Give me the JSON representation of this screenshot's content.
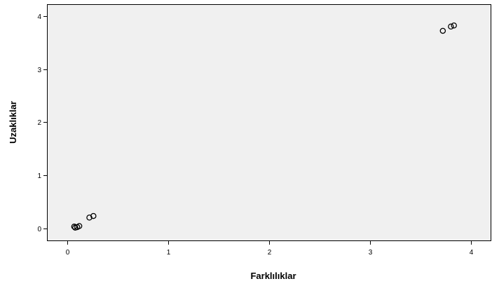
{
  "chart_data": {
    "type": "scatter",
    "title": "",
    "xlabel": "Farklılıklar",
    "ylabel": "Uzaklıklar",
    "xlim": [
      -0.2,
      4.2
    ],
    "ylim": [
      -0.22,
      4.22
    ],
    "x_ticks": [
      0,
      1,
      2,
      3,
      4
    ],
    "y_ticks": [
      0,
      1,
      2,
      3,
      4
    ],
    "grid": false,
    "plot_background": "#f0f0f0",
    "marker": "open-circle",
    "marker_color": "#000000",
    "points": [
      {
        "x": 0.07,
        "y": 0.04
      },
      {
        "x": 0.08,
        "y": 0.02
      },
      {
        "x": 0.1,
        "y": 0.03
      },
      {
        "x": 0.12,
        "y": 0.05
      },
      {
        "x": 0.22,
        "y": 0.21
      },
      {
        "x": 0.26,
        "y": 0.24
      },
      {
        "x": 3.72,
        "y": 3.72
      },
      {
        "x": 3.8,
        "y": 3.8
      },
      {
        "x": 3.83,
        "y": 3.82
      }
    ]
  }
}
